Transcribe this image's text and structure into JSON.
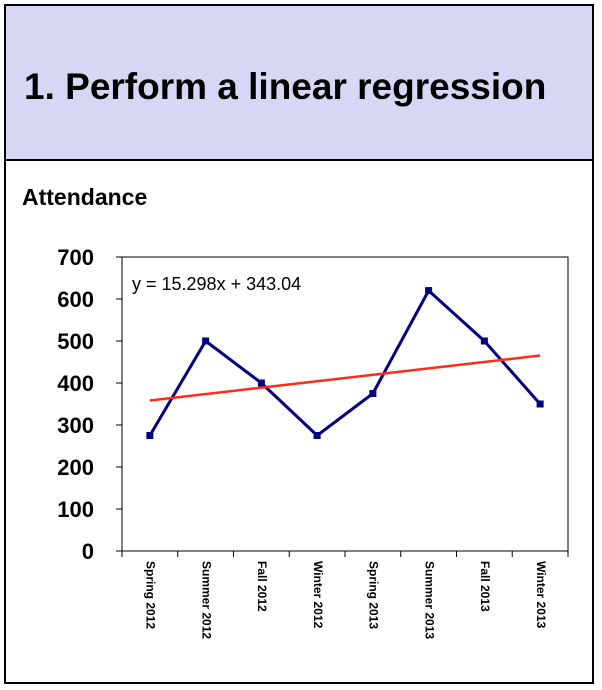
{
  "slide": {
    "title": "1. Perform a linear regression",
    "section_label": "Attendance"
  },
  "chart_data": {
    "type": "line",
    "title": "",
    "xlabel": "",
    "ylabel": "",
    "categories": [
      "Spring 2012",
      "Summer 2012",
      "Fall 2012",
      "Winter 2012",
      "Spring 2013",
      "Summer 2013",
      "Fall 2013",
      "Winter 2013"
    ],
    "ylim": [
      0,
      700
    ],
    "yticks": [
      "0",
      "100",
      "200",
      "300",
      "400",
      "500",
      "600",
      "700"
    ],
    "grid": false,
    "legend": "none",
    "series": [
      {
        "values": [
          275,
          500,
          400,
          275,
          375,
          620,
          500,
          350
        ],
        "color": "#000080",
        "marker": "square"
      }
    ],
    "trendline": {
      "type": "linear",
      "slope": 15.298,
      "intercept": 343.04,
      "color": "#ff2a1a",
      "equation_label": "y = 15.298x + 343.04"
    }
  }
}
